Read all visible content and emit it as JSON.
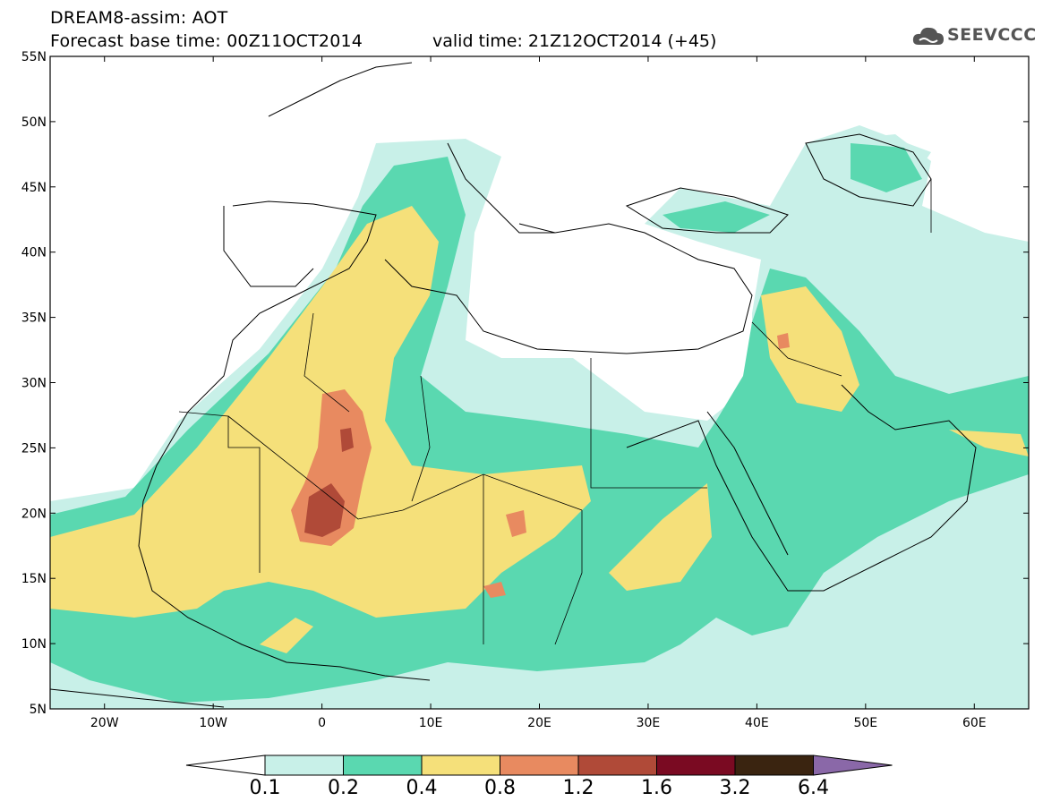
{
  "header": {
    "title": "DREAM8-assim: AOT",
    "base_time": "Forecast base time: 00Z11OCT2014",
    "valid_time": "valid time: 21Z12OCT2014 (+45)",
    "logo_text": "SEEVCCC"
  },
  "map": {
    "lon_range": [
      -25,
      65
    ],
    "lat_range": [
      5,
      55
    ],
    "lon_ticks": [
      "20W",
      "10W",
      "0",
      "10E",
      "20E",
      "30E",
      "40E",
      "50E",
      "60E"
    ],
    "lat_ticks": [
      "5N",
      "10N",
      "15N",
      "20N",
      "25N",
      "30N",
      "35N",
      "40N",
      "45N",
      "50N",
      "55N"
    ],
    "field": "Aerosol Optical Thickness"
  },
  "colorbar": {
    "levels": [
      "0.1",
      "0.2",
      "0.4",
      "0.8",
      "1.2",
      "1.6",
      "3.2",
      "6.4"
    ],
    "colors": [
      "#ffffff",
      "#c8f0e8",
      "#5ad8b0",
      "#f5e07a",
      "#e88a60",
      "#b04a38",
      "#7a0a22",
      "#3a2410",
      "#8a68a8"
    ]
  }
}
